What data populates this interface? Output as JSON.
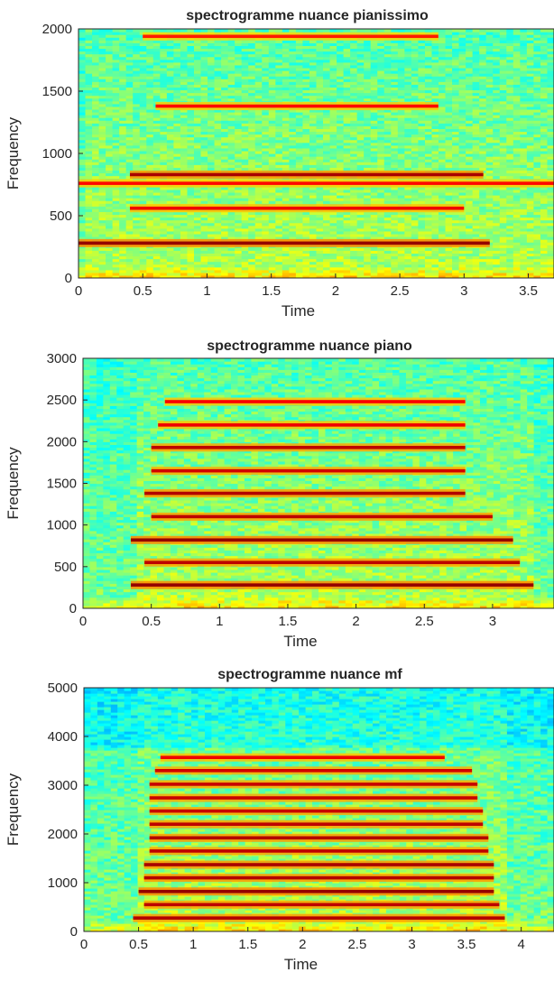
{
  "chart_data": [
    {
      "type": "heatmap",
      "title": "spectrogramme nuance pianissimo",
      "xlabel": "Time",
      "ylabel": "Frequency",
      "xlim": [
        0,
        3.7
      ],
      "ylim": [
        0,
        2000
      ],
      "xticks": [
        0,
        0.5,
        1,
        1.5,
        2,
        2.5,
        3,
        3.5
      ],
      "xtick_labels": [
        "0",
        "0.5",
        "1",
        "1.5",
        "2",
        "2.5",
        "3",
        "3.5"
      ],
      "yticks": [
        0,
        500,
        1000,
        1500,
        2000
      ],
      "ytick_labels": [
        "0",
        "500",
        "1000",
        "1500",
        "2000"
      ],
      "colormap": "jet",
      "grid": false,
      "harmonics": [
        {
          "freq": 280,
          "t_start": 0.0,
          "t_end": 3.2,
          "intensity": 1.0
        },
        {
          "freq": 560,
          "t_start": 0.4,
          "t_end": 3.0,
          "intensity": 0.55
        },
        {
          "freq": 760,
          "t_start": 0.0,
          "t_end": 3.7,
          "intensity": 0.45
        },
        {
          "freq": 830,
          "t_start": 0.4,
          "t_end": 3.15,
          "intensity": 0.9
        },
        {
          "freq": 1380,
          "t_start": 0.6,
          "t_end": 2.8,
          "intensity": 0.45
        },
        {
          "freq": 1940,
          "t_start": 0.5,
          "t_end": 2.8,
          "intensity": 0.35
        }
      ]
    },
    {
      "type": "heatmap",
      "title": "spectrogramme nuance piano",
      "xlabel": "Time",
      "ylabel": "Frequency",
      "xlim": [
        0,
        3.45
      ],
      "ylim": [
        0,
        3000
      ],
      "xticks": [
        0,
        0.5,
        1,
        1.5,
        2,
        2.5,
        3
      ],
      "xtick_labels": [
        "0",
        "0.5",
        "1",
        "1.5",
        "2",
        "2.5",
        "3"
      ],
      "yticks": [
        0,
        500,
        1000,
        1500,
        2000,
        2500,
        3000
      ],
      "ytick_labels": [
        "0",
        "500",
        "1000",
        "1500",
        "2000",
        "2500",
        "3000"
      ],
      "colormap": "jet",
      "grid": false,
      "harmonics": [
        {
          "freq": 280,
          "t_start": 0.35,
          "t_end": 3.3,
          "intensity": 1.0
        },
        {
          "freq": 550,
          "t_start": 0.45,
          "t_end": 3.2,
          "intensity": 0.8
        },
        {
          "freq": 820,
          "t_start": 0.35,
          "t_end": 3.15,
          "intensity": 1.0
        },
        {
          "freq": 1100,
          "t_start": 0.5,
          "t_end": 3.0,
          "intensity": 0.8
        },
        {
          "freq": 1380,
          "t_start": 0.45,
          "t_end": 2.8,
          "intensity": 0.85
        },
        {
          "freq": 1650,
          "t_start": 0.5,
          "t_end": 2.8,
          "intensity": 0.7
        },
        {
          "freq": 1930,
          "t_start": 0.5,
          "t_end": 2.8,
          "intensity": 0.8
        },
        {
          "freq": 2200,
          "t_start": 0.55,
          "t_end": 2.8,
          "intensity": 0.55
        },
        {
          "freq": 2480,
          "t_start": 0.6,
          "t_end": 2.8,
          "intensity": 0.5
        }
      ]
    },
    {
      "type": "heatmap",
      "title": "spectrogramme nuance mf",
      "xlabel": "Time",
      "ylabel": "Frequency",
      "xlim": [
        0,
        4.3
      ],
      "ylim": [
        0,
        5000
      ],
      "xticks": [
        0,
        0.5,
        1,
        1.5,
        2,
        2.5,
        3,
        3.5,
        4
      ],
      "xtick_labels": [
        "0",
        "0.5",
        "1",
        "1.5",
        "2",
        "2.5",
        "3",
        "3.5",
        "4"
      ],
      "yticks": [
        0,
        1000,
        2000,
        3000,
        4000,
        5000
      ],
      "ytick_labels": [
        "0",
        "1000",
        "2000",
        "3000",
        "4000",
        "5000"
      ],
      "colormap": "jet",
      "grid": false,
      "harmonics": [
        {
          "freq": 275,
          "t_start": 0.45,
          "t_end": 3.85,
          "intensity": 0.85
        },
        {
          "freq": 550,
          "t_start": 0.55,
          "t_end": 3.8,
          "intensity": 0.8
        },
        {
          "freq": 820,
          "t_start": 0.5,
          "t_end": 3.75,
          "intensity": 1.0
        },
        {
          "freq": 1100,
          "t_start": 0.55,
          "t_end": 3.75,
          "intensity": 0.85
        },
        {
          "freq": 1370,
          "t_start": 0.55,
          "t_end": 3.75,
          "intensity": 0.9
        },
        {
          "freq": 1650,
          "t_start": 0.6,
          "t_end": 3.7,
          "intensity": 0.8
        },
        {
          "freq": 1920,
          "t_start": 0.6,
          "t_end": 3.7,
          "intensity": 0.85
        },
        {
          "freq": 2200,
          "t_start": 0.6,
          "t_end": 3.65,
          "intensity": 0.8
        },
        {
          "freq": 2470,
          "t_start": 0.6,
          "t_end": 3.65,
          "intensity": 0.75
        },
        {
          "freq": 2740,
          "t_start": 0.6,
          "t_end": 3.6,
          "intensity": 0.75
        },
        {
          "freq": 3020,
          "t_start": 0.6,
          "t_end": 3.6,
          "intensity": 0.75
        },
        {
          "freq": 3300,
          "t_start": 0.65,
          "t_end": 3.55,
          "intensity": 0.7
        },
        {
          "freq": 3570,
          "t_start": 0.7,
          "t_end": 3.3,
          "intensity": 0.55
        }
      ]
    }
  ]
}
